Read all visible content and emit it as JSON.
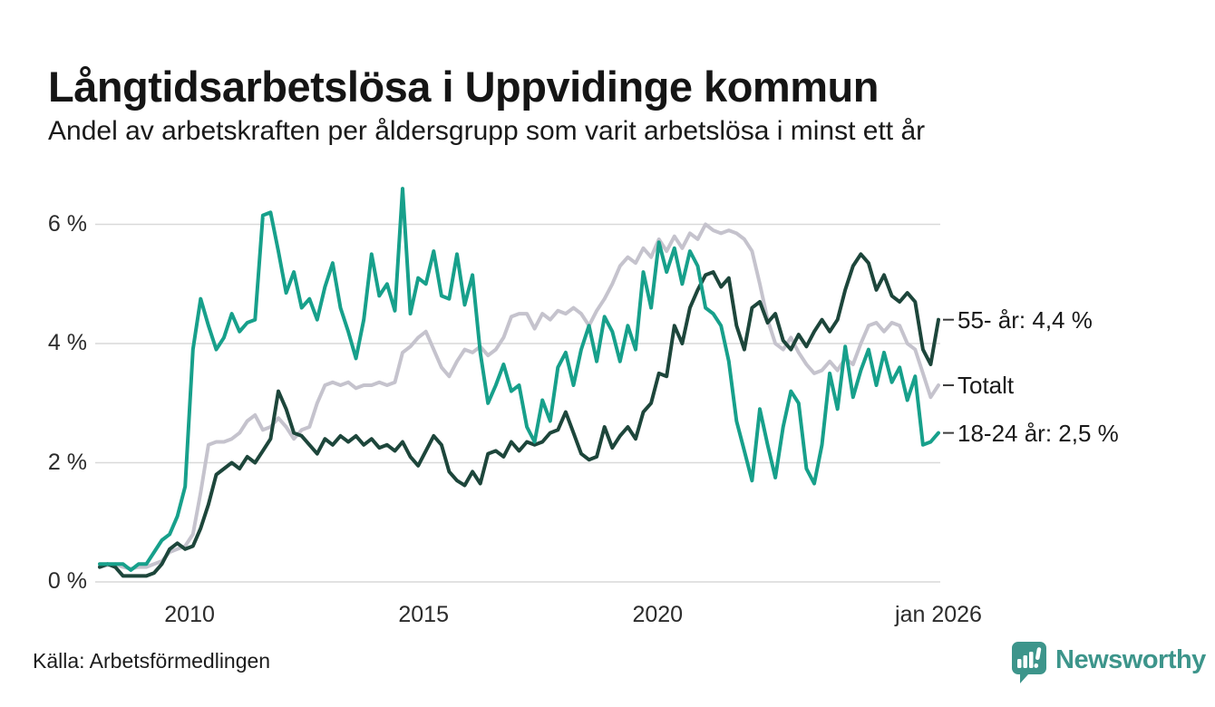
{
  "header": {
    "title": "Långtidsarbetslösa i Uppvidinge kommun",
    "subtitle": "Andel av arbetskraften per åldersgrupp som varit arbetslösa i minst ett år"
  },
  "footer": {
    "source": "Källa: Arbetsförmedlingen",
    "brand": "Newsworthy"
  },
  "colors": {
    "teal_line": "#17a08b",
    "dark_green_line": "#1d463b",
    "gray_line": "#c5c3cd",
    "gridline": "#d9d9d9",
    "annotation_tick": "#3c3c3c",
    "brand_teal": "#3d958b"
  },
  "chart_data": {
    "type": "line",
    "title": "Långtidsarbetslösa i Uppvidinge kommun",
    "subtitle": "Andel av arbetskraften per åldersgrupp som varit arbetslösa i minst ett år",
    "unit": "%",
    "grid": true,
    "legend_position": "right-annotations",
    "x_start": 2008.08,
    "x_end": 2026.0,
    "ylim": [
      0,
      6.8
    ],
    "x_ticks": [
      {
        "label": "2010",
        "value": 2010
      },
      {
        "label": "2015",
        "value": 2015
      },
      {
        "label": "2020",
        "value": 2020
      },
      {
        "label": "jan 2026",
        "value": 2026.0
      }
    ],
    "y_ticks": [
      {
        "label": "0 %",
        "value": 0
      },
      {
        "label": "2 %",
        "value": 2
      },
      {
        "label": "4 %",
        "value": 4
      },
      {
        "label": "6 %",
        "value": 6
      }
    ],
    "series": [
      {
        "name": "Totalt",
        "annotation": "Totalt",
        "color": "#c5c3cd",
        "last_value": 3.3,
        "values": [
          0.25,
          0.28,
          0.3,
          0.25,
          0.22,
          0.25,
          0.25,
          0.3,
          0.35,
          0.5,
          0.55,
          0.6,
          0.8,
          1.5,
          2.3,
          2.35,
          2.35,
          2.4,
          2.5,
          2.7,
          2.8,
          2.55,
          2.6,
          2.75,
          2.6,
          2.4,
          2.55,
          2.6,
          3.0,
          3.3,
          3.35,
          3.3,
          3.35,
          3.25,
          3.3,
          3.3,
          3.35,
          3.3,
          3.35,
          3.85,
          3.95,
          4.1,
          4.2,
          3.9,
          3.6,
          3.45,
          3.7,
          3.9,
          3.85,
          3.95,
          3.8,
          3.9,
          4.1,
          4.45,
          4.5,
          4.5,
          4.25,
          4.5,
          4.4,
          4.55,
          4.5,
          4.6,
          4.5,
          4.3,
          4.55,
          4.75,
          5.0,
          5.3,
          5.45,
          5.35,
          5.6,
          5.45,
          5.75,
          5.55,
          5.8,
          5.6,
          5.85,
          5.75,
          6.0,
          5.9,
          5.85,
          5.9,
          5.85,
          5.75,
          5.55,
          5.0,
          4.4,
          4.0,
          3.9,
          4.1,
          3.85,
          3.65,
          3.5,
          3.55,
          3.7,
          3.55,
          3.75,
          3.65,
          4.0,
          4.3,
          4.35,
          4.2,
          4.35,
          4.3,
          4.0,
          3.9,
          3.5,
          3.1,
          3.3
        ]
      },
      {
        "name": "55- år",
        "annotation": "55- år: 4,4 %",
        "color": "#1d463b",
        "last_value": 4.4,
        "values": [
          0.25,
          0.3,
          0.25,
          0.1,
          0.1,
          0.1,
          0.1,
          0.15,
          0.3,
          0.55,
          0.65,
          0.55,
          0.6,
          0.9,
          1.3,
          1.8,
          1.9,
          2.0,
          1.9,
          2.1,
          2.0,
          2.2,
          2.4,
          3.2,
          2.9,
          2.5,
          2.45,
          2.3,
          2.15,
          2.4,
          2.3,
          2.45,
          2.35,
          2.45,
          2.3,
          2.4,
          2.25,
          2.3,
          2.2,
          2.35,
          2.1,
          1.95,
          2.2,
          2.45,
          2.3,
          1.85,
          1.7,
          1.62,
          1.85,
          1.65,
          2.15,
          2.2,
          2.1,
          2.35,
          2.2,
          2.35,
          2.3,
          2.35,
          2.5,
          2.55,
          2.85,
          2.5,
          2.15,
          2.05,
          2.1,
          2.6,
          2.25,
          2.45,
          2.6,
          2.4,
          2.85,
          3.0,
          3.5,
          3.45,
          4.3,
          4.0,
          4.6,
          4.9,
          5.15,
          5.2,
          4.95,
          5.1,
          4.3,
          3.9,
          4.6,
          4.7,
          4.35,
          4.5,
          4.05,
          3.9,
          4.15,
          3.95,
          4.2,
          4.4,
          4.2,
          4.4,
          4.9,
          5.3,
          5.5,
          5.35,
          4.9,
          5.15,
          4.8,
          4.7,
          4.85,
          4.7,
          3.9,
          3.65,
          4.4
        ]
      },
      {
        "name": "18-24 år",
        "annotation": "18-24 år: 2,5 %",
        "color": "#17a08b",
        "last_value": 2.5,
        "values": [
          0.3,
          0.3,
          0.3,
          0.3,
          0.2,
          0.3,
          0.3,
          0.5,
          0.7,
          0.8,
          1.1,
          1.6,
          3.9,
          4.75,
          4.3,
          3.9,
          4.1,
          4.5,
          4.2,
          4.35,
          4.4,
          6.15,
          6.2,
          5.55,
          4.85,
          5.2,
          4.6,
          4.75,
          4.4,
          4.95,
          5.35,
          4.6,
          4.2,
          3.75,
          4.4,
          5.5,
          4.8,
          5.0,
          4.55,
          6.6,
          4.5,
          5.1,
          5.0,
          5.55,
          4.8,
          4.75,
          5.5,
          4.65,
          5.15,
          3.85,
          3.0,
          3.3,
          3.65,
          3.2,
          3.3,
          2.6,
          2.35,
          3.05,
          2.7,
          3.6,
          3.85,
          3.3,
          3.9,
          4.3,
          3.7,
          4.45,
          4.2,
          3.7,
          4.3,
          3.9,
          5.2,
          4.6,
          5.7,
          5.2,
          5.6,
          5.0,
          5.55,
          5.3,
          4.6,
          4.5,
          4.3,
          3.7,
          2.7,
          2.2,
          1.7,
          2.9,
          2.3,
          1.75,
          2.6,
          3.2,
          3.0,
          1.9,
          1.65,
          2.3,
          3.5,
          2.9,
          3.95,
          3.1,
          3.55,
          3.9,
          3.3,
          3.85,
          3.35,
          3.6,
          3.05,
          3.45,
          2.3,
          2.35,
          2.5
        ]
      }
    ]
  }
}
